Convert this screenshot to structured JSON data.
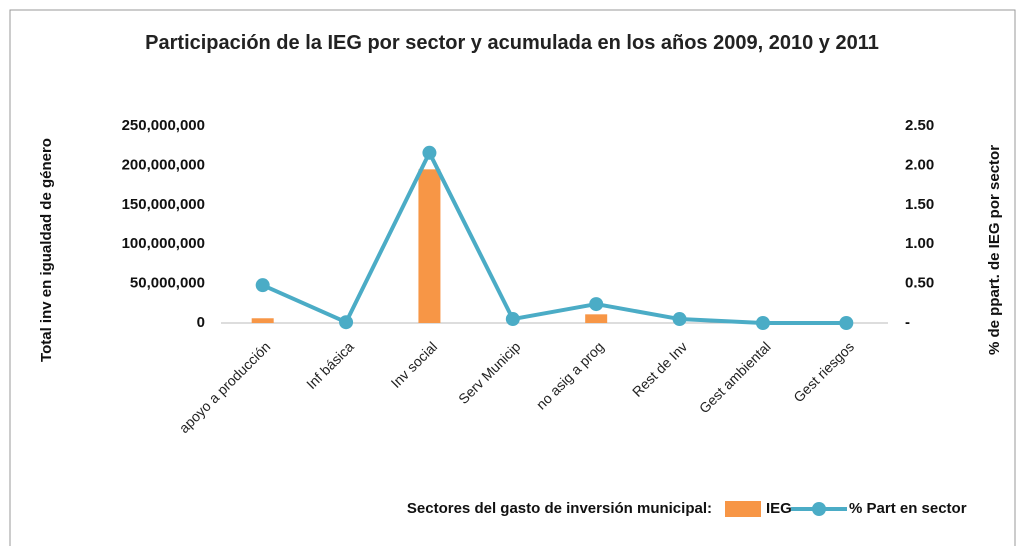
{
  "chart_data": {
    "type": "bar_line",
    "title": "Participación de la IEG por sector y acumulada en los años 2009, 2010 y 2011",
    "y_label": "Total inv en igualdad de género",
    "y2_label": "% de ppart. de IEG por sector",
    "legend_title": "Sectores del gasto de inversión municipal:",
    "categories": [
      "apoyo a producción",
      "Inf básica",
      "Inv social",
      "Serv Municip",
      "no asig a prog",
      "Rest de Inv",
      "Gest ambiental",
      "Gest riesgos"
    ],
    "series": [
      {
        "name": "IEG",
        "type": "bar",
        "color": "#f79646",
        "values": [
          6000000,
          0,
          195000000,
          0,
          11000000,
          0,
          0,
          0
        ]
      },
      {
        "name": "% Part en sector",
        "type": "line",
        "axis": "y2",
        "color": "#4bacc6",
        "values": [
          0.48,
          0.01,
          2.16,
          0.05,
          0.24,
          0.05,
          0.0,
          0.0
        ]
      }
    ],
    "ylim": [
      0,
      250000000
    ],
    "yticks": [
      0,
      {
        "value": 50000000,
        "label": "50,000,000"
      },
      {
        "value": 100000000,
        "label": "100,000,000"
      },
      {
        "value": 150000000,
        "label": "150,000,000"
      },
      {
        "value": 200000000,
        "label": "200,000,000"
      },
      {
        "value": 250000000,
        "label": "250,000,000"
      }
    ],
    "y2lim": [
      0,
      2.5
    ],
    "y2ticks": [
      {
        "value": 0,
        "label": "-"
      },
      {
        "value": 0.5,
        "label": "0.50"
      },
      {
        "value": 1.0,
        "label": "1.00"
      },
      {
        "value": 1.5,
        "label": "1.50"
      },
      {
        "value": 2.0,
        "label": "2.00"
      },
      {
        "value": 2.5,
        "label": "2.50"
      }
    ],
    "grid": false
  }
}
